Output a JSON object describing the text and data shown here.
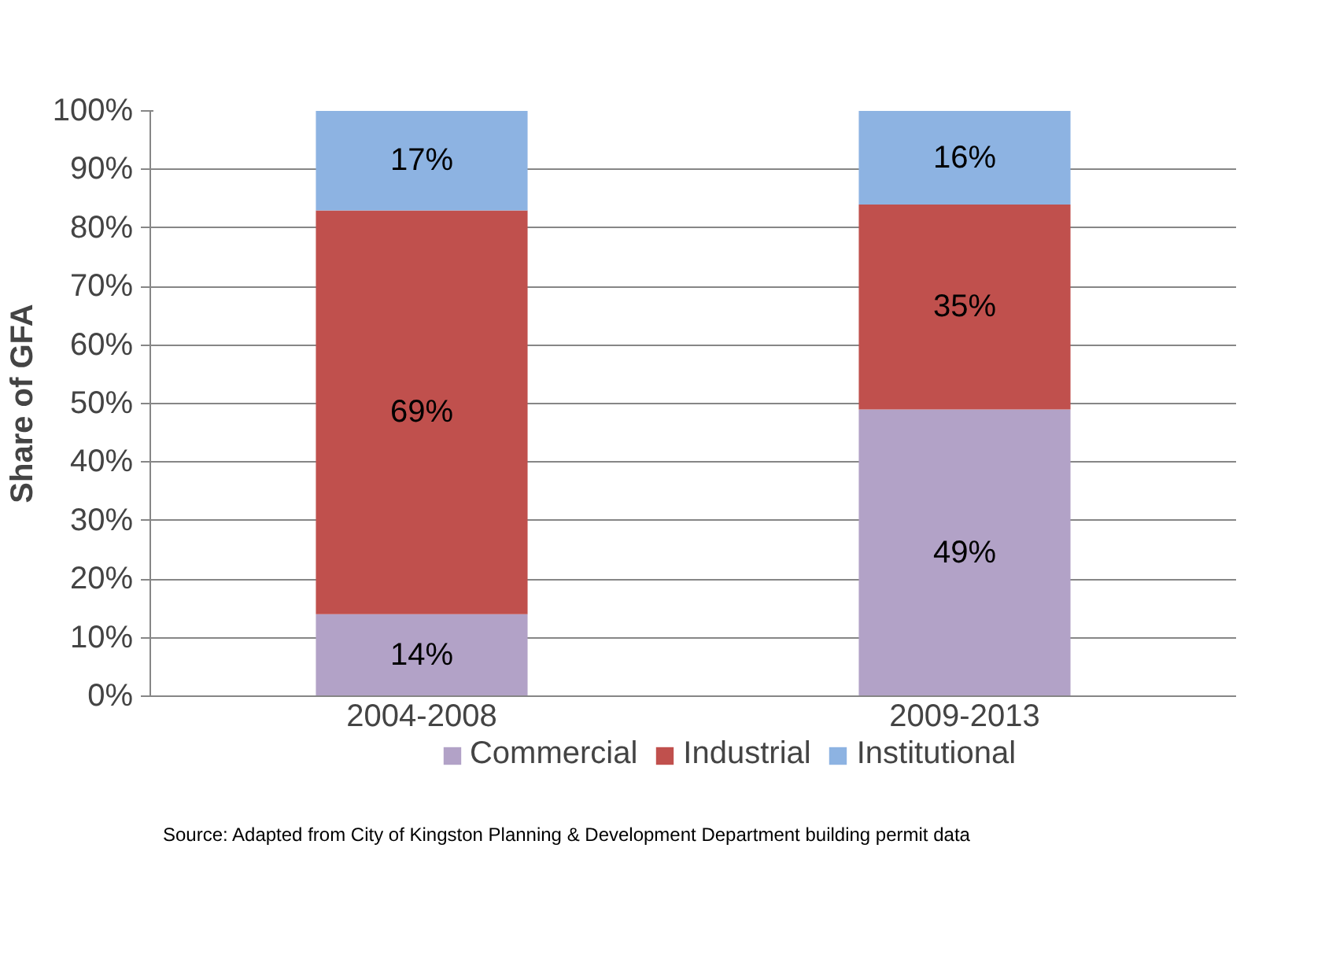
{
  "chart_data": {
    "type": "bar",
    "stacked": true,
    "ylabel": "Share of GFA",
    "categories": [
      "2004-2008",
      "2009-2013"
    ],
    "series": [
      {
        "name": "Commercial",
        "color": "#b2a2c7",
        "values": [
          14,
          49
        ],
        "value_labels": [
          "14%",
          "49%"
        ]
      },
      {
        "name": "Industrial",
        "color": "#c0504d",
        "values": [
          69,
          35
        ],
        "value_labels": [
          "69%",
          "35%"
        ]
      },
      {
        "name": "Institutional",
        "color": "#8db3e2",
        "values": [
          17,
          16
        ],
        "value_labels": [
          "17%",
          "16%"
        ]
      }
    ],
    "ylim": [
      0,
      100
    ],
    "yticks": [
      {
        "value": 0,
        "label": "0%"
      },
      {
        "value": 10,
        "label": "10%"
      },
      {
        "value": 20,
        "label": "20%"
      },
      {
        "value": 30,
        "label": "30%"
      },
      {
        "value": 40,
        "label": "40%"
      },
      {
        "value": 50,
        "label": "50%"
      },
      {
        "value": 60,
        "label": "60%"
      },
      {
        "value": 70,
        "label": "70%"
      },
      {
        "value": 80,
        "label": "80%"
      },
      {
        "value": 90,
        "label": "90%"
      },
      {
        "value": 100,
        "label": "100%"
      }
    ],
    "grid": "y",
    "legend": "bottom",
    "annotations": [
      "Source: Adapted from City of Kingston Planning & Development Department building permit data"
    ]
  }
}
